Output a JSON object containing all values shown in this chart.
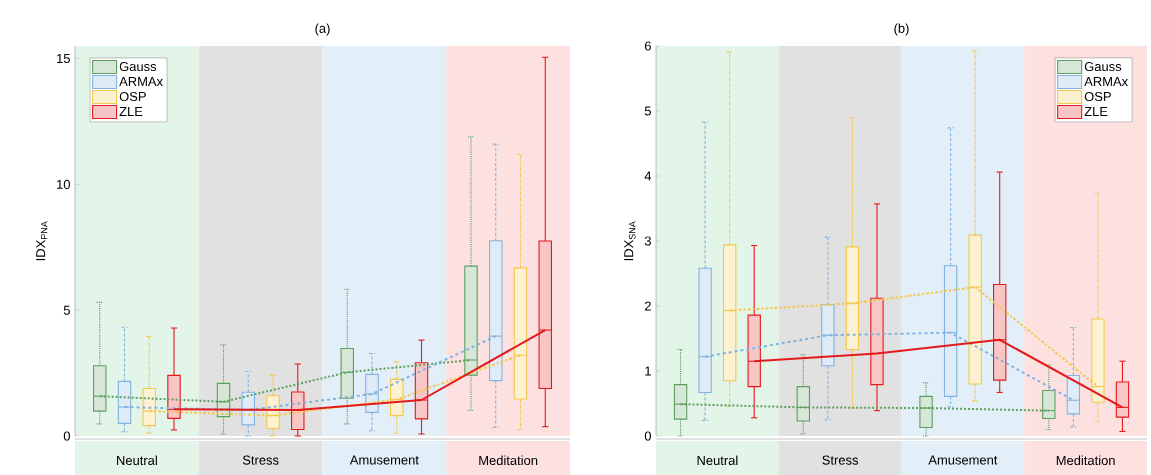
{
  "chart_data": [
    {
      "type": "box",
      "title": "(a)",
      "ylabel": "IDX$_{PNA}$",
      "categories": [
        "Neutral",
        "Stress",
        "Amusement",
        "Meditation"
      ],
      "ylim": [
        0,
        15.5
      ],
      "yticks": [
        0,
        5,
        10,
        15
      ],
      "legend": "top left",
      "bands": [
        {
          "axis": "x",
          "from": "Neutral",
          "to": "Neutral",
          "color": "#e3f4e8"
        },
        {
          "axis": "x",
          "from": "Stress",
          "to": "Stress",
          "color": "#e1e1e1"
        },
        {
          "axis": "x",
          "from": "Amusement",
          "to": "Amusement",
          "color": "#e2eef8"
        },
        {
          "axis": "x",
          "from": "Meditation",
          "to": "Meditation",
          "color": "#fde1e1"
        }
      ],
      "series": [
        {
          "name": "Gauss",
          "color": "#5f9e5f",
          "line_style": "dotted",
          "boxes": [
            {
              "low": 0.48,
              "q1": 0.99,
              "median": 1.58,
              "q3": 2.79,
              "high": 5.31
            },
            {
              "low": 0.08,
              "q1": 0.77,
              "median": 1.36,
              "q3": 2.09,
              "high": 3.62
            },
            {
              "low": 0.48,
              "q1": 1.5,
              "median": 2.53,
              "q3": 3.48,
              "high": 5.83
            },
            {
              "low": 1.01,
              "q1": 2.42,
              "median": 3.02,
              "q3": 6.75,
              "high": 11.89
            }
          ]
        },
        {
          "name": "ARMAx",
          "color": "#80b3e0",
          "line_style": "dashed",
          "boxes": [
            {
              "low": 0.17,
              "q1": 0.5,
              "median": 1.15,
              "q3": 2.17,
              "high": 4.32
            },
            {
              "low": 0,
              "q1": 0.44,
              "median": 1.03,
              "q3": 1.74,
              "high": 2.57
            },
            {
              "low": 0.21,
              "q1": 0.94,
              "median": 1.67,
              "q3": 2.45,
              "high": 3.28
            },
            {
              "low": 0.34,
              "q1": 2.2,
              "median": 3.97,
              "q3": 7.76,
              "high": 11.6
            }
          ]
        },
        {
          "name": "OSP",
          "color": "#f2c94c",
          "line_style": "dashdot",
          "boxes": [
            {
              "low": 0.11,
              "q1": 0.41,
              "median": 0.99,
              "q3": 1.89,
              "high": 3.95
            },
            {
              "low": 0,
              "q1": 0.3,
              "median": 0.81,
              "q3": 1.6,
              "high": 2.41
            },
            {
              "low": 0.11,
              "q1": 0.81,
              "median": 1.45,
              "q3": 2.25,
              "high": 2.95
            },
            {
              "low": 0.26,
              "q1": 1.47,
              "median": 3.21,
              "q3": 6.68,
              "high": 11.19
            }
          ]
        },
        {
          "name": "ZLE",
          "color": "#e41a1c",
          "line_style": "solid",
          "boxes": [
            {
              "low": 0.24,
              "q1": 0.7,
              "median": 1.06,
              "q3": 2.41,
              "high": 4.29
            },
            {
              "low": 0,
              "q1": 0.26,
              "median": 1.03,
              "q3": 1.75,
              "high": 2.86
            },
            {
              "low": 0.08,
              "q1": 0.68,
              "median": 1.43,
              "q3": 2.91,
              "high": 3.81
            },
            {
              "low": 0.37,
              "q1": 1.89,
              "median": 4.21,
              "q3": 7.75,
              "high": 15.05
            }
          ]
        },
        {
          "type": "line",
          "color": "#5f9e5f",
          "line_style": "dotted",
          "values": [
            1.58,
            1.36,
            2.53,
            3.02
          ]
        },
        {
          "type": "line",
          "color": "#80b3e0",
          "line_style": "dashed",
          "values": [
            1.15,
            1.03,
            1.67,
            3.97
          ]
        },
        {
          "type": "line",
          "color": "#f2c94c",
          "line_style": "dashdot",
          "values": [
            0.99,
            0.81,
            1.45,
            3.21
          ]
        },
        {
          "type": "line",
          "color": "#e41a1c",
          "line_style": "solid",
          "values": [
            1.06,
            1.03,
            1.43,
            4.21
          ]
        }
      ]
    },
    {
      "type": "box",
      "title": "(b)",
      "ylabel": "IDX$_{SNA}$",
      "categories": [
        "Neutral",
        "Stress",
        "Amusement",
        "Meditation"
      ],
      "ylim": [
        0,
        6
      ],
      "yticks": [
        0,
        1,
        2,
        3,
        4,
        5,
        6
      ],
      "legend": "top right",
      "bands": [
        {
          "axis": "x",
          "from": "Neutral",
          "to": "Neutral",
          "color": "#e3f4e8"
        },
        {
          "axis": "x",
          "from": "Stress",
          "to": "Stress",
          "color": "#e1e1e1"
        },
        {
          "axis": "x",
          "from": "Amusement",
          "to": "Amusement",
          "color": "#e2eef8"
        },
        {
          "axis": "x",
          "from": "Meditation",
          "to": "Meditation",
          "color": "#fde1e1"
        }
      ],
      "series": [
        {
          "name": "Gauss",
          "color": "#5f9e5f",
          "line_style": "dotted",
          "boxes": [
            {
              "low": 0,
              "q1": 0.26,
              "median": 0.49,
              "q3": 0.79,
              "high": 1.33
            },
            {
              "low": 0.03,
              "q1": 0.23,
              "median": 0.44,
              "q3": 0.76,
              "high": 1.25
            },
            {
              "low": 0,
              "q1": 0.13,
              "median": 0.43,
              "q3": 0.61,
              "high": 0.82
            },
            {
              "low": 0.1,
              "q1": 0.27,
              "median": 0.39,
              "q3": 0.7,
              "high": 1.09
            }
          ]
        },
        {
          "name": "ARMAx",
          "color": "#80b3e0",
          "line_style": "dashed",
          "boxes": [
            {
              "low": 0.24,
              "q1": 0.67,
              "median": 1.22,
              "q3": 2.58,
              "high": 4.83
            },
            {
              "low": 0.25,
              "q1": 1.08,
              "median": 1.55,
              "q3": 2.02,
              "high": 3.06
            },
            {
              "low": 0.45,
              "q1": 0.61,
              "median": 1.59,
              "q3": 2.62,
              "high": 4.74
            },
            {
              "low": 0.14,
              "q1": 0.34,
              "median": 0.55,
              "q3": 0.93,
              "high": 1.67
            }
          ]
        },
        {
          "name": "OSP",
          "color": "#f2c94c",
          "line_style": "dashdot",
          "boxes": [
            {
              "low": 0.46,
              "q1": 0.85,
              "median": 1.93,
              "q3": 2.94,
              "high": 5.91
            },
            {
              "low": 0.43,
              "q1": 1.33,
              "median": 2.04,
              "q3": 2.91,
              "high": 4.9
            },
            {
              "low": 0.54,
              "q1": 0.8,
              "median": 2.29,
              "q3": 3.09,
              "high": 5.93
            },
            {
              "low": 0.22,
              "q1": 0.52,
              "median": 0.76,
              "q3": 1.8,
              "high": 3.73
            }
          ]
        },
        {
          "name": "ZLE",
          "color": "#e41a1c",
          "line_style": "solid",
          "boxes": [
            {
              "low": 0.28,
              "q1": 0.76,
              "median": 1.15,
              "q3": 1.86,
              "high": 2.93
            },
            {
              "low": 0.39,
              "q1": 0.79,
              "median": 1.27,
              "q3": 2.12,
              "high": 3.57
            },
            {
              "low": 0.67,
              "q1": 0.86,
              "median": 1.48,
              "q3": 2.33,
              "high": 4.06
            },
            {
              "low": 0.07,
              "q1": 0.29,
              "median": 0.44,
              "q3": 0.83,
              "high": 1.15
            }
          ]
        },
        {
          "type": "line",
          "color": "#5f9e5f",
          "line_style": "dotted",
          "values": [
            0.49,
            0.44,
            0.43,
            0.39
          ]
        },
        {
          "type": "line",
          "color": "#80b3e0",
          "line_style": "dashed",
          "values": [
            1.22,
            1.55,
            1.59,
            0.55
          ]
        },
        {
          "type": "line",
          "color": "#f2c94c",
          "line_style": "dashdot",
          "values": [
            1.93,
            2.04,
            2.29,
            0.76
          ]
        },
        {
          "type": "line",
          "color": "#e41a1c",
          "line_style": "solid",
          "values": [
            1.15,
            1.27,
            1.48,
            0.44
          ]
        }
      ]
    }
  ]
}
